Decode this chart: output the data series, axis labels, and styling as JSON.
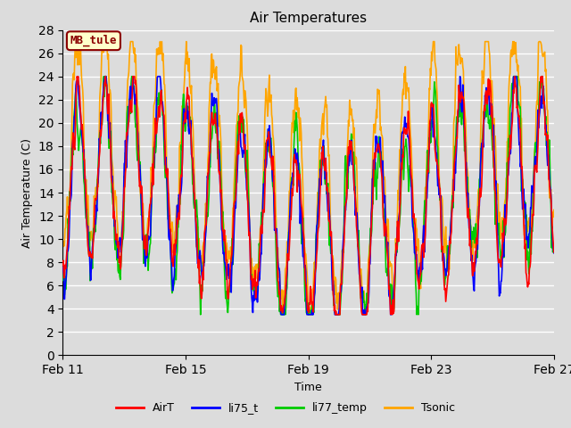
{
  "title": "Air Temperatures",
  "xlabel": "Time",
  "ylabel": "Air Temperature (C)",
  "ylim": [
    0,
    28
  ],
  "yticks": [
    0,
    2,
    4,
    6,
    8,
    10,
    12,
    14,
    16,
    18,
    20,
    22,
    24,
    26,
    28
  ],
  "xtick_labels": [
    "Feb 11",
    "Feb 15",
    "Feb 19",
    "Feb 23",
    "Feb 27"
  ],
  "xtick_positions": [
    0,
    192,
    384,
    576,
    768
  ],
  "n_points": 864,
  "period": 96,
  "bg_color": "#dcdcdc",
  "plot_bg_color": "#dcdcdc",
  "grid_color": "#ffffff",
  "colors": {
    "AirT": "#ff0000",
    "li75_t": "#0000ff",
    "li77_temp": "#00cc00",
    "Tsonic": "#ffa500"
  },
  "legend_label": "MB_tule",
  "legend_label_color": "#8b0000",
  "legend_box_color": "#ffffcc",
  "legend_box_edge": "#8b0000",
  "figsize": [
    6.4,
    4.8
  ],
  "dpi": 100
}
